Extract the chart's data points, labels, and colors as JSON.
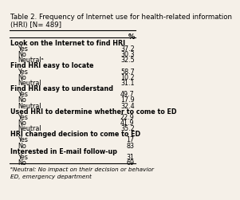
{
  "title": "Table 2. Frequency of Internet use for health-related information\n(HRI) [N= 489]",
  "col_header": "%",
  "rows": [
    {
      "label": "Look on the Internet to find HRI",
      "bold": true,
      "indent": 0,
      "value": null
    },
    {
      "label": "Yes",
      "bold": false,
      "indent": 1,
      "value": "37.2"
    },
    {
      "label": "No",
      "bold": false,
      "indent": 1,
      "value": "30.3"
    },
    {
      "label": "Neutralᵃ",
      "bold": false,
      "indent": 1,
      "value": "32.5"
    },
    {
      "label": "Find HRI easy to locate",
      "bold": true,
      "indent": 0,
      "value": null
    },
    {
      "label": "Yes",
      "bold": false,
      "indent": 1,
      "value": "58.7"
    },
    {
      "label": "No",
      "bold": false,
      "indent": 1,
      "value": "10.2"
    },
    {
      "label": "Neutral",
      "bold": false,
      "indent": 1,
      "value": "31.1"
    },
    {
      "label": "Find HRI easy to understand",
      "bold": true,
      "indent": 0,
      "value": null
    },
    {
      "label": "Yes",
      "bold": false,
      "indent": 1,
      "value": "49.7"
    },
    {
      "label": "No",
      "bold": false,
      "indent": 1,
      "value": "17.9"
    },
    {
      "label": "Neutral",
      "bold": false,
      "indent": 1,
      "value": "32.4"
    },
    {
      "label": "Used HRI to determine whether to come to ED",
      "bold": true,
      "indent": 0,
      "value": null
    },
    {
      "label": "Yes",
      "bold": false,
      "indent": 1,
      "value": "22.9"
    },
    {
      "label": "No",
      "bold": false,
      "indent": 1,
      "value": "41.9"
    },
    {
      "label": "Neutral",
      "bold": false,
      "indent": 1,
      "value": "35.2"
    },
    {
      "label": "HRI changed decision to come to ED",
      "bold": true,
      "indent": 0,
      "value": null
    },
    {
      "label": "Yes",
      "bold": false,
      "indent": 1,
      "value": "17"
    },
    {
      "label": "No",
      "bold": false,
      "indent": 1,
      "value": "83"
    },
    {
      "label": "Interested in E-mail follow-up",
      "bold": true,
      "indent": 0,
      "value": null
    },
    {
      "label": "Yes",
      "bold": false,
      "indent": 1,
      "value": "31"
    },
    {
      "label": "No",
      "bold": false,
      "indent": 1,
      "value": "69"
    }
  ],
  "footnotes": [
    "ᵃNeutral: No impact on their decision or behavior",
    "ED, emergency department"
  ],
  "bg_color": "#f5f0e8",
  "title_fontsize": 6.2,
  "body_fontsize": 5.8,
  "header_fontsize": 6.0
}
